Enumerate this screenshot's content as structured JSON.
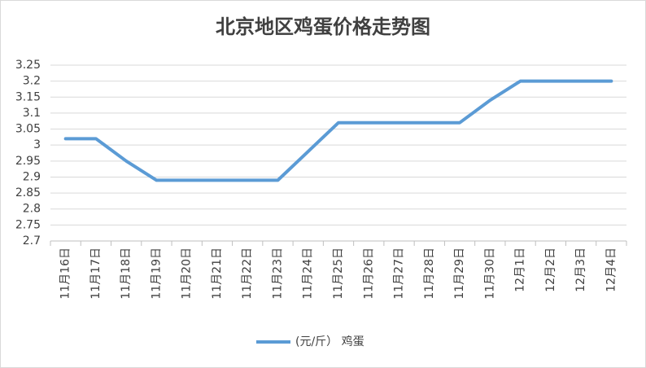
{
  "chart_data": {
    "type": "line",
    "title": "北京地区鸡蛋价格走势图",
    "categories": [
      "11月16日",
      "11月17日",
      "11月18日",
      "11月19日",
      "11月20日",
      "11月21日",
      "11月22日",
      "11月23日",
      "11月24日",
      "11月25日",
      "11月26日",
      "11月27日",
      "11月28日",
      "11月29日",
      "11月30日",
      "12月1日",
      "12月2日",
      "12月3日",
      "12月4日"
    ],
    "series": [
      {
        "name": "(元/斤） 鸡蛋",
        "color": "#5b9bd5",
        "values": [
          3.02,
          3.02,
          2.95,
          2.89,
          2.89,
          2.89,
          2.89,
          2.89,
          2.98,
          3.07,
          3.07,
          3.07,
          3.07,
          3.07,
          3.14,
          3.2,
          3.2,
          3.2,
          3.2
        ]
      }
    ],
    "ylim": [
      2.7,
      3.25
    ],
    "yticks": [
      2.7,
      2.75,
      2.8,
      2.85,
      2.9,
      2.95,
      3,
      3.05,
      3.1,
      3.15,
      3.2,
      3.25
    ],
    "grid": true,
    "legend": "bottom"
  }
}
